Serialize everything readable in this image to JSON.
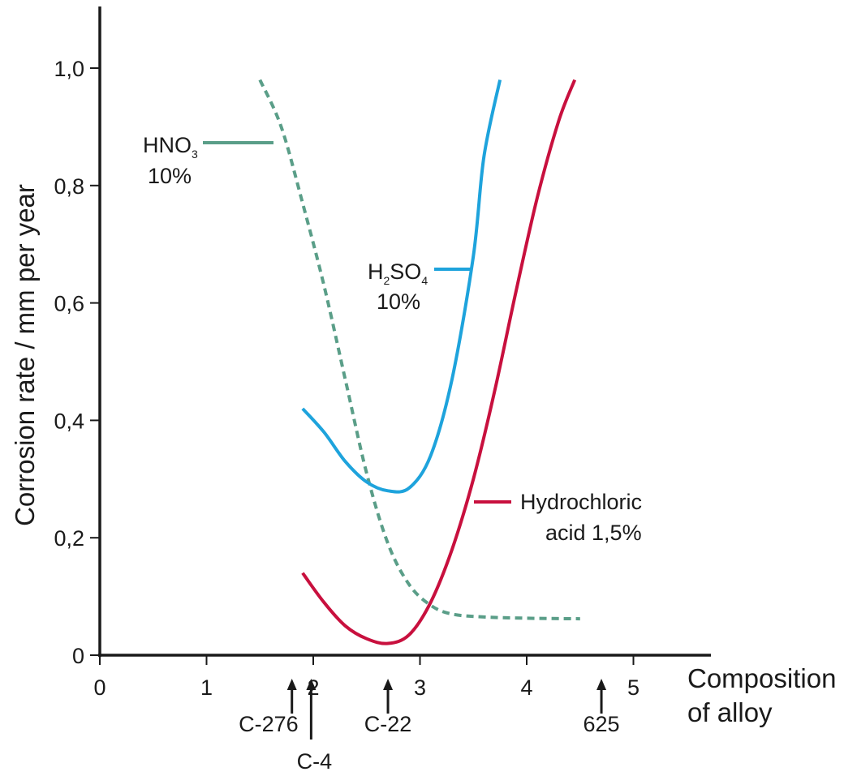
{
  "chart_data": {
    "type": "line",
    "title": "",
    "xlabel_line1": "Composition",
    "xlabel_line2": "of alloy",
    "ylabel": "Corrosion rate / mm per year",
    "xlim": [
      0,
      5.6
    ],
    "ylim": [
      0,
      1.1
    ],
    "x_ticks": [
      0,
      1,
      2,
      3,
      4,
      5
    ],
    "x_tick_labels": [
      "0",
      "1",
      "2",
      "3",
      "4",
      "5"
    ],
    "y_ticks": [
      0,
      0.2,
      0.4,
      0.6,
      0.8,
      1.0
    ],
    "y_tick_labels": [
      "0",
      "0,2",
      "0,4",
      "0,6",
      "0,8",
      "1,0"
    ],
    "grid": false,
    "series": [
      {
        "name_main": "HNO",
        "name_sub": "3",
        "concentration": "10%",
        "color": "#5a9e88",
        "dashed": true,
        "points": [
          [
            1.5,
            0.98
          ],
          [
            1.7,
            0.9
          ],
          [
            1.9,
            0.77
          ],
          [
            2.1,
            0.63
          ],
          [
            2.3,
            0.47
          ],
          [
            2.5,
            0.31
          ],
          [
            2.7,
            0.19
          ],
          [
            2.9,
            0.12
          ],
          [
            3.1,
            0.085
          ],
          [
            3.3,
            0.07
          ],
          [
            3.6,
            0.065
          ],
          [
            4.0,
            0.063
          ],
          [
            4.5,
            0.062
          ]
        ]
      },
      {
        "name_main": "H",
        "name_sub1": "2",
        "name_mid": "SO",
        "name_sub2": "4",
        "concentration": "10%",
        "color": "#1ea3dc",
        "dashed": false,
        "points": [
          [
            1.9,
            0.42
          ],
          [
            2.1,
            0.38
          ],
          [
            2.3,
            0.33
          ],
          [
            2.5,
            0.295
          ],
          [
            2.7,
            0.28
          ],
          [
            2.9,
            0.285
          ],
          [
            3.1,
            0.34
          ],
          [
            3.3,
            0.47
          ],
          [
            3.5,
            0.68
          ],
          [
            3.6,
            0.85
          ],
          [
            3.75,
            0.98
          ]
        ]
      },
      {
        "name_line1": "Hydrochloric",
        "name_line2": "acid 1,5%",
        "color": "#c8103e",
        "dashed": false,
        "points": [
          [
            1.9,
            0.14
          ],
          [
            2.1,
            0.09
          ],
          [
            2.3,
            0.05
          ],
          [
            2.5,
            0.028
          ],
          [
            2.7,
            0.02
          ],
          [
            2.9,
            0.035
          ],
          [
            3.1,
            0.09
          ],
          [
            3.3,
            0.18
          ],
          [
            3.5,
            0.3
          ],
          [
            3.7,
            0.45
          ],
          [
            3.9,
            0.62
          ],
          [
            4.1,
            0.78
          ],
          [
            4.3,
            0.91
          ],
          [
            4.45,
            0.98
          ]
        ]
      }
    ],
    "alloy_markers": [
      {
        "label": "C-276",
        "x": 1.8
      },
      {
        "label": "C-4",
        "x": 1.98
      },
      {
        "label": "C-22",
        "x": 2.7
      },
      {
        "label": "625",
        "x": 4.7
      }
    ]
  }
}
